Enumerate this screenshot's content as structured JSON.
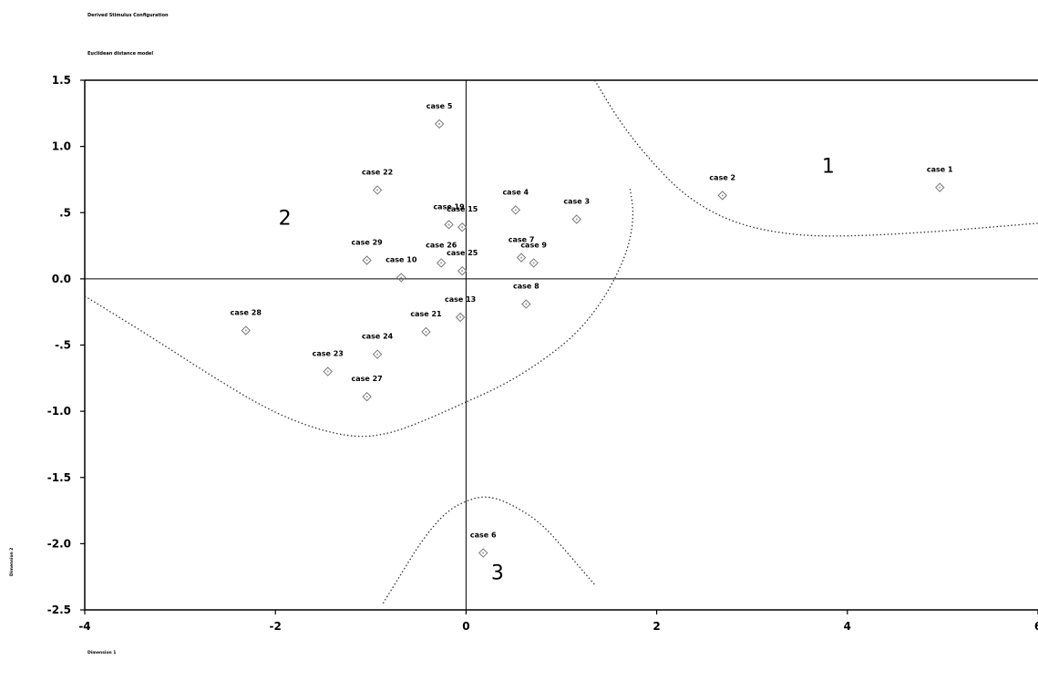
{
  "header": {
    "title": "Derived Stimulus Configuration",
    "subtitle": "Euclidean distance model"
  },
  "chart_data": {
    "type": "scatter",
    "title": "Derived Stimulus Configuration",
    "subtitle": "Euclidean distance model",
    "xlabel": "Dimension 1",
    "ylabel": "Dimension 2",
    "xlim": [
      -4,
      6
    ],
    "ylim": [
      -2.5,
      1.5
    ],
    "grid": false,
    "x_ticks": [
      {
        "v": -4,
        "label": "-4"
      },
      {
        "v": -2,
        "label": "-2"
      },
      {
        "v": 0,
        "label": "0"
      },
      {
        "v": 2,
        "label": "2"
      },
      {
        "v": 4,
        "label": "4"
      },
      {
        "v": 6,
        "label": "6"
      }
    ],
    "y_ticks": [
      {
        "v": 1.5,
        "label": "1.5"
      },
      {
        "v": 1.0,
        "label": "1.0"
      },
      {
        "v": 0.5,
        "label": ".5"
      },
      {
        "v": 0.0,
        "label": "0.0"
      },
      {
        "v": -0.5,
        "label": "-.5"
      },
      {
        "v": -1.0,
        "label": "-1.0"
      },
      {
        "v": -1.5,
        "label": "-1.5"
      },
      {
        "v": -2.0,
        "label": "-2.0"
      },
      {
        "v": -2.5,
        "label": "-2.5"
      }
    ],
    "points": [
      {
        "label": "case 1",
        "x": 4.97,
        "y": 0.69
      },
      {
        "label": "case 2",
        "x": 2.69,
        "y": 0.63
      },
      {
        "label": "case 3",
        "x": 1.16,
        "y": 0.45
      },
      {
        "label": "case 4",
        "x": 0.52,
        "y": 0.52
      },
      {
        "label": "case 5",
        "x": -0.28,
        "y": 1.17
      },
      {
        "label": "case 6",
        "x": 0.18,
        "y": -2.07
      },
      {
        "label": "case 7",
        "x": 0.58,
        "y": 0.16
      },
      {
        "label": "case 8",
        "x": 0.63,
        "y": -0.19
      },
      {
        "label": "case 9",
        "x": 0.71,
        "y": 0.12
      },
      {
        "label": "case 10",
        "x": -0.68,
        "y": 0.01
      },
      {
        "label": "case 13",
        "x": -0.06,
        "y": -0.29
      },
      {
        "label": "case 15",
        "x": -0.04,
        "y": 0.39
      },
      {
        "label": "case 19",
        "x": -0.18,
        "y": 0.41
      },
      {
        "label": "case 21",
        "x": -0.42,
        "y": -0.4
      },
      {
        "label": "case 22",
        "x": -0.93,
        "y": 0.67
      },
      {
        "label": "case 23",
        "x": -1.45,
        "y": -0.7
      },
      {
        "label": "case 24",
        "x": -0.93,
        "y": -0.57
      },
      {
        "label": "case 25",
        "x": -0.04,
        "y": 0.06
      },
      {
        "label": "case 26",
        "x": -0.26,
        "y": 0.12
      },
      {
        "label": "case 27",
        "x": -1.04,
        "y": -0.89
      },
      {
        "label": "case 28",
        "x": -2.31,
        "y": -0.39
      },
      {
        "label": "case 29",
        "x": -1.04,
        "y": 0.14
      }
    ],
    "annotations": [
      {
        "text": "1",
        "x": 3.8,
        "y": 0.8
      },
      {
        "text": "2",
        "x": -1.9,
        "y": 0.41
      },
      {
        "text": "3",
        "x": 0.33,
        "y": -2.27
      }
    ]
  }
}
